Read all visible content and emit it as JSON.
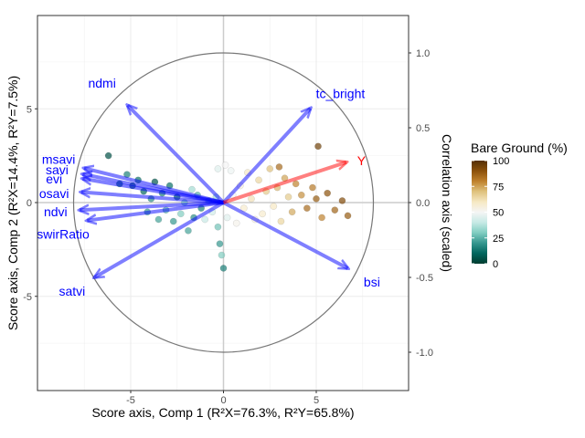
{
  "chart_data": {
    "type": "scatter",
    "subtype": "PLS biplot",
    "xlabel": "Score axis, Comp 1 (R²X=76.3%, R²Y=65.8%)",
    "ylabel": "Score axis, Comp 2 (R²X=14.4%, R²Y=7.5%)",
    "y2label": "Correlation axis (scaled)",
    "xlim": [
      -10,
      10
    ],
    "ylim": [
      -10,
      10
    ],
    "y2lim": [
      -1.25,
      1.25
    ],
    "x_ticks": [
      "-5",
      "0",
      "5"
    ],
    "y_ticks": [
      "-5",
      "0",
      "5"
    ],
    "y2_ticks": [
      "1.0",
      "0.5",
      "0.0",
      "-0.5",
      "-1.0"
    ],
    "grid": true,
    "legend": {
      "title": "Bare Ground (%)",
      "ticks": [
        "100",
        "75",
        "50",
        "25",
        "0"
      ],
      "placement": "right",
      "colors": [
        "#543005",
        "#8c510a",
        "#bf812d",
        "#dfc27d",
        "#f6e8c3",
        "#f5f5f5",
        "#c7eae5",
        "#80cdc1",
        "#35978f",
        "#01665e",
        "#003c30"
      ]
    },
    "variables": [
      {
        "name": "ndmi",
        "x": -0.64,
        "y": 0.65,
        "color": "#0000ff"
      },
      {
        "name": "tc_bright",
        "x": 0.58,
        "y": 0.63,
        "color": "#0000ff"
      },
      {
        "name": "msavi",
        "x": -0.93,
        "y": 0.23,
        "color": "#0000ff"
      },
      {
        "name": "savi",
        "x": -0.94,
        "y": 0.19,
        "color": "#0000ff"
      },
      {
        "name": "evi",
        "x": -0.94,
        "y": 0.16,
        "color": "#0000ff"
      },
      {
        "name": "osavi",
        "x": -0.95,
        "y": 0.07,
        "color": "#0000ff"
      },
      {
        "name": "ndvi",
        "x": -0.96,
        "y": -0.05,
        "color": "#0000ff"
      },
      {
        "name": "swirRatio",
        "x": -0.91,
        "y": -0.12,
        "color": "#0000ff"
      },
      {
        "name": "satvi",
        "x": -0.86,
        "y": -0.5,
        "color": "#0000ff"
      },
      {
        "name": "bsi",
        "x": 0.83,
        "y": -0.44,
        "color": "#0000ff"
      },
      {
        "name": "Y",
        "x": 0.82,
        "y": 0.27,
        "color": "#ff0000"
      }
    ],
    "scores": [
      {
        "x": -6.2,
        "y": 2.5,
        "v": 5
      },
      {
        "x": -5.6,
        "y": 1.0,
        "v": 10
      },
      {
        "x": -5.2,
        "y": 1.5,
        "v": 15
      },
      {
        "x": -4.9,
        "y": 0.9,
        "v": 8
      },
      {
        "x": -4.6,
        "y": 1.2,
        "v": 12
      },
      {
        "x": -4.3,
        "y": 0.6,
        "v": 10
      },
      {
        "x": -4.1,
        "y": -0.5,
        "v": 20
      },
      {
        "x": -3.9,
        "y": 0.2,
        "v": 18
      },
      {
        "x": -3.7,
        "y": 1.1,
        "v": 6
      },
      {
        "x": -3.5,
        "y": -0.9,
        "v": 22
      },
      {
        "x": -3.3,
        "y": 0.5,
        "v": 15
      },
      {
        "x": -3.1,
        "y": -0.4,
        "v": 25
      },
      {
        "x": -2.9,
        "y": 0.9,
        "v": 12
      },
      {
        "x": -2.7,
        "y": -1.0,
        "v": 20
      },
      {
        "x": -2.5,
        "y": 0.3,
        "v": 10
      },
      {
        "x": -2.3,
        "y": -0.6,
        "v": 30
      },
      {
        "x": -2.1,
        "y": 0.0,
        "v": 28
      },
      {
        "x": -1.9,
        "y": -1.5,
        "v": 22
      },
      {
        "x": -1.7,
        "y": 0.7,
        "v": 35
      },
      {
        "x": -1.6,
        "y": -0.8,
        "v": 18
      },
      {
        "x": -1.4,
        "y": 0.4,
        "v": 25
      },
      {
        "x": -1.2,
        "y": -0.3,
        "v": 15
      },
      {
        "x": -1.0,
        "y": -0.9,
        "v": 40
      },
      {
        "x": -0.8,
        "y": 0.1,
        "v": 30
      },
      {
        "x": -0.6,
        "y": -0.5,
        "v": 42
      },
      {
        "x": -0.4,
        "y": 0.3,
        "v": 35
      },
      {
        "x": -0.3,
        "y": -1.3,
        "v": 28
      },
      {
        "x": -0.2,
        "y": -2.2,
        "v": 20
      },
      {
        "x": -0.1,
        "y": -2.8,
        "v": 30
      },
      {
        "x": 0.0,
        "y": -3.5,
        "v": 15
      },
      {
        "x": 0.1,
        "y": 2.0,
        "v": 50
      },
      {
        "x": 0.2,
        "y": -0.8,
        "v": 45
      },
      {
        "x": 0.4,
        "y": 1.7,
        "v": 48
      },
      {
        "x": 0.5,
        "y": 0.4,
        "v": 50
      },
      {
        "x": 0.7,
        "y": -1.1,
        "v": 52
      },
      {
        "x": 0.9,
        "y": 0.9,
        "v": 55
      },
      {
        "x": 1.1,
        "y": -0.3,
        "v": 58
      },
      {
        "x": 1.3,
        "y": 1.6,
        "v": 60
      },
      {
        "x": 1.5,
        "y": 0.2,
        "v": 62
      },
      {
        "x": 1.7,
        "y": -0.9,
        "v": 55
      },
      {
        "x": 1.9,
        "y": 1.2,
        "v": 65
      },
      {
        "x": 2.1,
        "y": -0.6,
        "v": 58
      },
      {
        "x": 2.3,
        "y": 0.6,
        "v": 68
      },
      {
        "x": 2.5,
        "y": 1.8,
        "v": 70
      },
      {
        "x": 2.7,
        "y": -0.2,
        "v": 60
      },
      {
        "x": 2.9,
        "y": 0.8,
        "v": 72
      },
      {
        "x": 3.1,
        "y": -1.0,
        "v": 65
      },
      {
        "x": 3.3,
        "y": 1.3,
        "v": 75
      },
      {
        "x": 3.5,
        "y": 0.3,
        "v": 68
      },
      {
        "x": 3.7,
        "y": -0.5,
        "v": 74
      },
      {
        "x": 3.9,
        "y": 1.0,
        "v": 80
      },
      {
        "x": 4.2,
        "y": 0.4,
        "v": 78
      },
      {
        "x": 4.5,
        "y": -0.3,
        "v": 85
      },
      {
        "x": 4.8,
        "y": 0.8,
        "v": 82
      },
      {
        "x": 5.0,
        "y": 0.2,
        "v": 88
      },
      {
        "x": 5.3,
        "y": -0.8,
        "v": 80
      },
      {
        "x": 5.6,
        "y": 0.5,
        "v": 90
      },
      {
        "x": 6.0,
        "y": -0.4,
        "v": 86
      },
      {
        "x": 6.4,
        "y": 0.1,
        "v": 92
      },
      {
        "x": 6.7,
        "y": -0.7,
        "v": 88
      },
      {
        "x": 5.1,
        "y": 3.0,
        "v": 95
      },
      {
        "x": 3.0,
        "y": 1.9,
        "v": 85
      },
      {
        "x": -0.3,
        "y": 1.8,
        "v": 45
      }
    ]
  }
}
